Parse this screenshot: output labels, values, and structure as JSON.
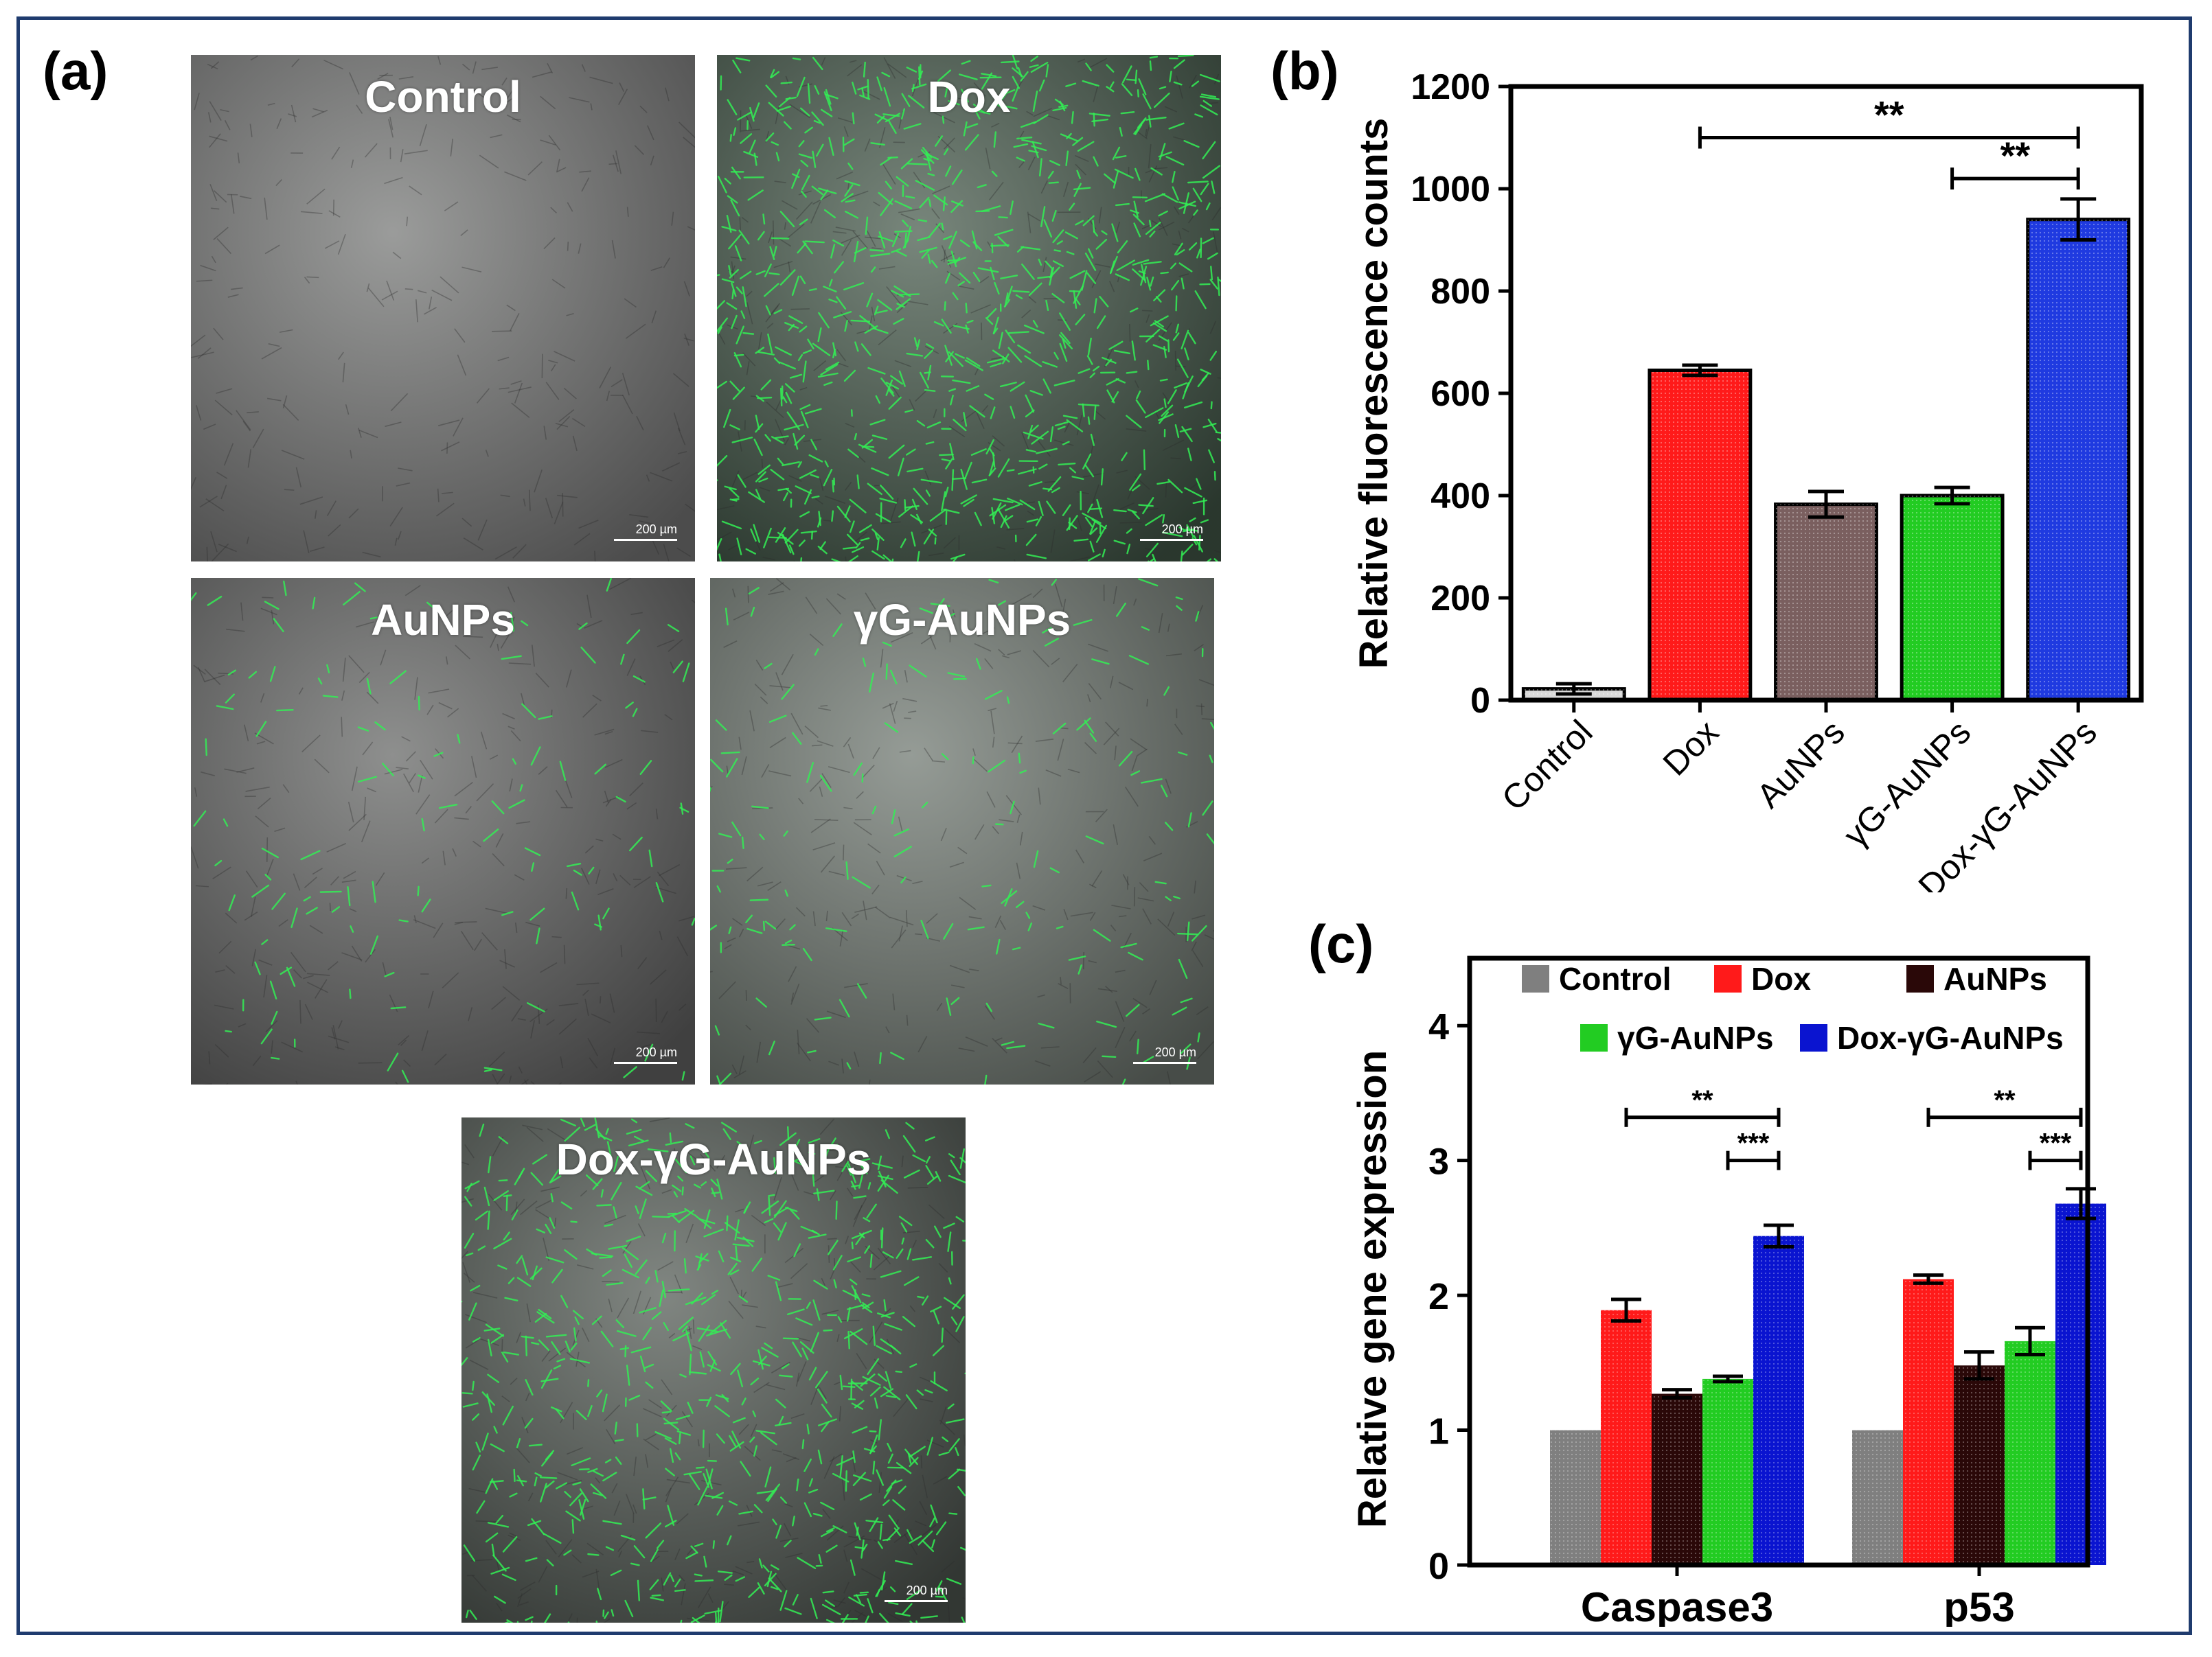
{
  "panels": {
    "a": "(a)",
    "b": "(b)",
    "c": "(c)"
  },
  "micrographs": [
    {
      "title": "Control",
      "scale": "200 µm",
      "base": "#8a8a8a",
      "green_density": 0
    },
    {
      "title": "Dox",
      "scale": "200 µm",
      "base": "#3d5a45",
      "green_density": 900
    },
    {
      "title": "AuNPs",
      "scale": "200 µm",
      "base": "#6e6e6e",
      "green_density": 120
    },
    {
      "title": "γG-AuNPs",
      "scale": "200 µm",
      "base": "#7e8a80",
      "green_density": 160
    },
    {
      "title": "Dox-γG-AuNPs",
      "scale": "200 µm",
      "base": "#505a52",
      "green_density": 700
    }
  ],
  "chart_data": [
    {
      "type": "bar",
      "panel": "b",
      "categories": [
        "Control",
        "Dox",
        "AuNPs",
        "γG-AuNPs",
        "Dox-γG-AuNPs"
      ],
      "values": [
        22,
        645,
        383,
        400,
        940
      ],
      "errors": [
        10,
        10,
        25,
        16,
        40
      ],
      "colors": [
        "#d9d9d9",
        "#ff1a1a",
        "#7a5f5f",
        "#22cc22",
        "#1f3ae0"
      ],
      "ylabel": "Relative fluorescence counts",
      "ylim": [
        0,
        1200
      ],
      "yticks": [
        0,
        200,
        400,
        600,
        800,
        1000,
        1200
      ],
      "significance": [
        {
          "from": 1,
          "to": 4,
          "label": "**",
          "y": 1100
        },
        {
          "from": 3,
          "to": 4,
          "label": "**",
          "y": 1020
        }
      ]
    },
    {
      "type": "bar",
      "panel": "c",
      "categories": [
        "Caspase3",
        "p53"
      ],
      "series": [
        {
          "name": "Control",
          "color": "#7f7f7f",
          "values": [
            1.0,
            1.0
          ],
          "errors": [
            0,
            0
          ]
        },
        {
          "name": "Dox",
          "color": "#ff1a1a",
          "values": [
            1.89,
            2.12
          ],
          "errors": [
            0.08,
            0.03
          ]
        },
        {
          "name": "AuNPs",
          "color": "#2a0808",
          "values": [
            1.27,
            1.48
          ],
          "errors": [
            0.03,
            0.1
          ]
        },
        {
          "name": "γG-AuNPs",
          "color": "#22cc22",
          "values": [
            1.38,
            1.66
          ],
          "errors": [
            0.02,
            0.1
          ]
        },
        {
          "name": "Dox-γG-AuNPs",
          "color": "#0a14d0",
          "values": [
            2.44,
            2.68
          ],
          "errors": [
            0.08,
            0.11
          ]
        }
      ],
      "ylabel": "Relative gene expression",
      "ylim": [
        0,
        4.5
      ],
      "yticks": [
        0,
        1,
        2,
        3,
        4
      ],
      "legend": "top",
      "significance": [
        {
          "group": 0,
          "from": 1,
          "to": 4,
          "label": "**",
          "y": 3.32
        },
        {
          "group": 0,
          "from": 3,
          "to": 4,
          "label": "***",
          "y": 3.0
        },
        {
          "group": 1,
          "from": 1,
          "to": 4,
          "label": "**",
          "y": 3.32
        },
        {
          "group": 1,
          "from": 3,
          "to": 4,
          "label": "***",
          "y": 3.0
        }
      ]
    }
  ]
}
